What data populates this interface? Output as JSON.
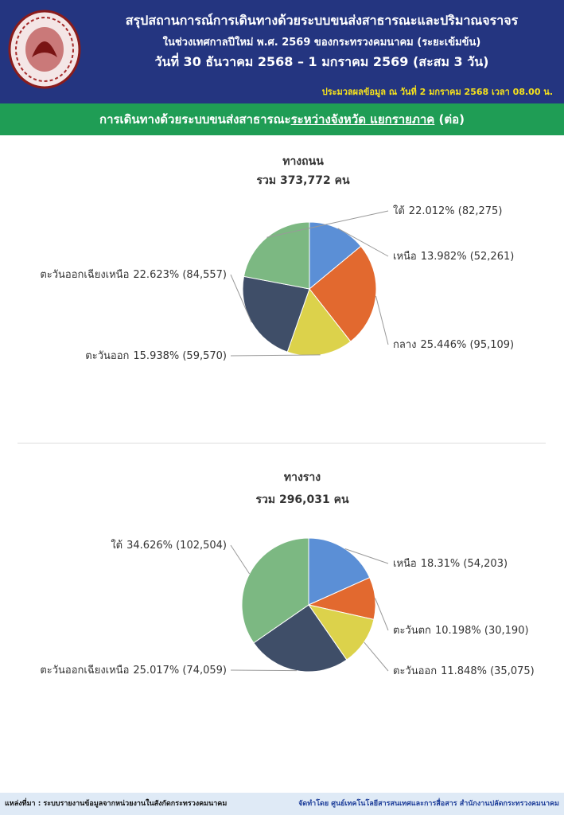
{
  "header": {
    "title": "สรุปสถานการณ์การเดินทางด้วยระบบขนส่งสาธารณะและปริมาณจราจร",
    "subtitle": "ในช่วงเทศกาลปีใหม่ พ.ศ. 2569 ของกระทรวงคมนาคม (ระยะเข้มข้น)",
    "period": "วันที่ 30 ธันวาคม 2568 – 1 มกราคม 2569 (สะสม 3 วัน)",
    "processed": "ประมวลผลข้อมูล ณ วันที่ 2 มกราคม 2568 เวลา 08.00 น."
  },
  "section": {
    "parts": [
      "การเดินทางด้วยระบบขนส่งสาธารณะ",
      "ระหว่างจังหวัด แยกรายภาค",
      "(ต่อ)"
    ]
  },
  "chart_data": [
    {
      "type": "pie",
      "title": "ทางถนน",
      "subtitle": "รวม 373,772 คน",
      "categories": [
        "เหนือ",
        "กลาง",
        "ตะวันออก",
        "ตะวันออกเฉียงเหนือ",
        "ใต้"
      ],
      "values": [
        13.982,
        25.446,
        15.938,
        22.623,
        22.012
      ],
      "value_labels": [
        "13.982% (52,261)",
        "25.446% (95,109)",
        "15.938% (59,570)",
        "22.623% (84,557)",
        "22.012% (82,275)"
      ],
      "colors": [
        "#5b8fd6",
        "#e2692f",
        "#dcd24b",
        "#3f4e68",
        "#7cb882"
      ]
    },
    {
      "type": "pie",
      "title": "ทางราง",
      "subtitle": "รวม 296,031 คน",
      "categories": [
        "เหนือ",
        "ตะวันตก",
        "ตะวันออก",
        "ตะวันออกเฉียงเหนือ",
        "ใต้"
      ],
      "values": [
        18.31,
        10.198,
        11.848,
        25.017,
        34.626
      ],
      "value_labels": [
        "18.31% (54,203)",
        "10.198% (30,190)",
        "11.848% (35,075)",
        "25.017% (74,059)",
        "34.626% (102,504)"
      ],
      "colors": [
        "#5b8fd6",
        "#e2692f",
        "#dcd24b",
        "#3f4e68",
        "#7cb882"
      ]
    }
  ],
  "footer": {
    "source": "แหล่งที่มา : ระบบรายงานข้อมูลจากหน่วยงานในสังกัดกระทรวงคมนาคม",
    "credit": "จัดทำโดย ศูนย์เทคโนโลยีสารสนเทศและการสื่อสาร สำนักงานปลัดกระทรวงคมนาคม"
  }
}
